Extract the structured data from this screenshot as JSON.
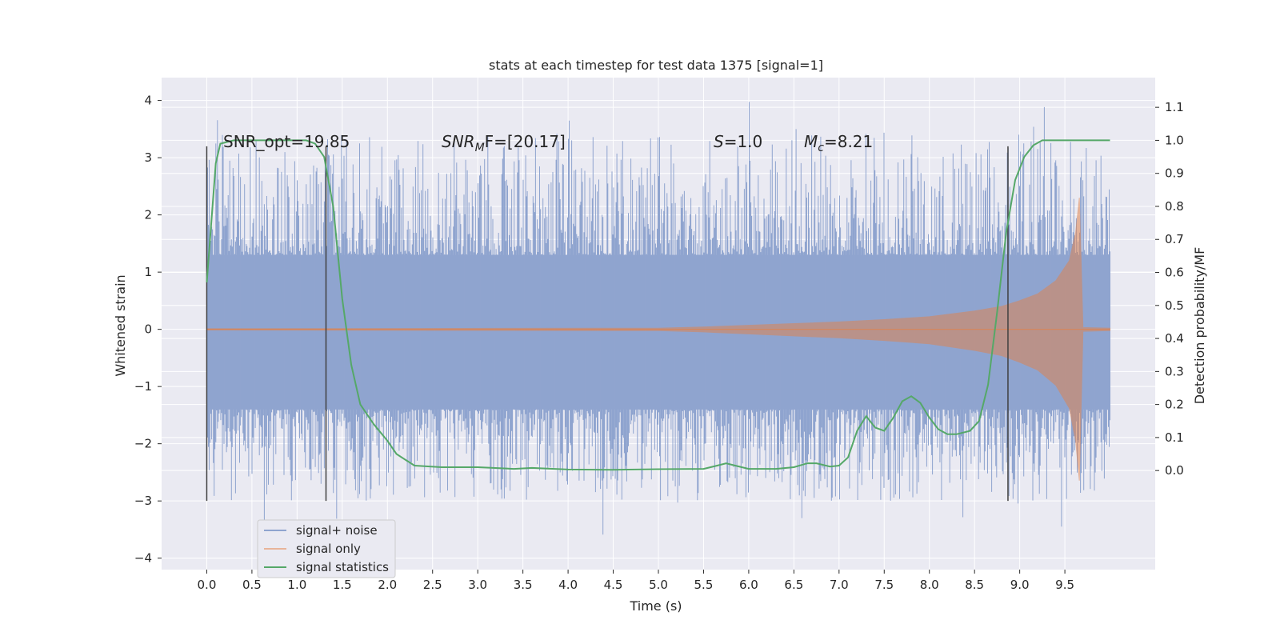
{
  "chart_data": {
    "type": "line",
    "title": "stats at each timestep for test data 1375 [signal=1]",
    "xlabel": "Time (s)",
    "ylabel": "Whitened strain",
    "ylabel_right": "Detection probability/MF",
    "xlim": [
      -0.5,
      10.5
    ],
    "ylim": [
      -4.2,
      4.4
    ],
    "ylim_right": [
      -0.3,
      1.19
    ],
    "x_ticks": [
      "0.0",
      "0.5",
      "1.0",
      "1.5",
      "2.0",
      "2.5",
      "3.0",
      "3.5",
      "4.0",
      "4.5",
      "5.0",
      "5.5",
      "6.0",
      "6.5",
      "7.0",
      "7.5",
      "8.0",
      "8.5",
      "9.0",
      "9.5"
    ],
    "y_ticks": [
      "−4",
      "−3",
      "−2",
      "−1",
      "0",
      "1",
      "2",
      "3",
      "4"
    ],
    "y_ticks_right": [
      "0.0",
      "0.1",
      "0.2",
      "0.3",
      "0.4",
      "0.5",
      "0.6",
      "0.7",
      "0.8",
      "0.9",
      "1.0",
      "1.1"
    ],
    "grid": true,
    "legend_position": "lower-left",
    "colors": {
      "background": "#eaeaf2",
      "noise": "#8fa4cf",
      "signal": "#dd8452",
      "stats": "#55a868",
      "vline": "#404040",
      "grid": "#ffffff"
    },
    "series": [
      {
        "name": "signal+ noise",
        "x": [
          0,
          10
        ],
        "band_upper": [
          1.3,
          1.3
        ],
        "band_lower": [
          -1.4,
          -1.4
        ],
        "spike_range": [
          -3.6,
          4.05
        ]
      },
      {
        "name": "signal only",
        "x": [
          0.0,
          5.0,
          5.5,
          6.0,
          6.5,
          7.0,
          7.5,
          8.0,
          8.5,
          8.8,
          9.0,
          9.2,
          9.4,
          9.55,
          9.62,
          9.66,
          9.7,
          10.0
        ],
        "amplitude": [
          0.01,
          0.02,
          0.04,
          0.07,
          0.1,
          0.13,
          0.17,
          0.22,
          0.32,
          0.4,
          0.5,
          0.62,
          0.85,
          1.2,
          1.7,
          2.3,
          0.03,
          0.02
        ]
      },
      {
        "name": "signal statistics",
        "x": [
          0.0,
          0.05,
          0.1,
          0.15,
          0.3,
          0.6,
          0.9,
          1.1,
          1.2,
          1.3,
          1.4,
          1.5,
          1.6,
          1.7,
          1.85,
          2.0,
          2.1,
          2.3,
          2.6,
          3.0,
          3.4,
          3.6,
          4.0,
          4.5,
          5.0,
          5.5,
          5.65,
          5.75,
          5.85,
          6.0,
          6.3,
          6.5,
          6.65,
          6.75,
          6.9,
          7.0,
          7.1,
          7.2,
          7.3,
          7.4,
          7.5,
          7.6,
          7.7,
          7.8,
          7.9,
          8.0,
          8.1,
          8.2,
          8.3,
          8.45,
          8.55,
          8.65,
          8.75,
          8.85,
          8.95,
          9.05,
          9.15,
          9.25,
          9.35,
          9.5,
          9.7,
          10.0
        ],
        "y": [
          0.57,
          0.75,
          0.93,
          0.99,
          1.0,
          1.0,
          1.0,
          1.0,
          0.99,
          0.95,
          0.8,
          0.52,
          0.32,
          0.2,
          0.14,
          0.09,
          0.05,
          0.015,
          0.01,
          0.01,
          0.005,
          0.008,
          0.003,
          0.002,
          0.004,
          0.005,
          0.015,
          0.022,
          0.015,
          0.005,
          0.005,
          0.01,
          0.022,
          0.022,
          0.012,
          0.015,
          0.04,
          0.12,
          0.165,
          0.13,
          0.12,
          0.16,
          0.21,
          0.225,
          0.205,
          0.16,
          0.125,
          0.11,
          0.11,
          0.12,
          0.15,
          0.26,
          0.48,
          0.72,
          0.88,
          0.95,
          0.985,
          1.0,
          1.0,
          1.0,
          1.0,
          1.0
        ]
      }
    ],
    "vlines": [
      {
        "x": 0.0,
        "ymin": -3.0,
        "ymax": 3.2
      },
      {
        "x": 1.32,
        "ymin": -3.0,
        "ymax": 3.2
      },
      {
        "x": 8.87,
        "ymin": -3.0,
        "ymax": 3.2
      }
    ],
    "annotations": {
      "snr_opt": {
        "text": "SNR_opt=19.85",
        "x": 0.2,
        "y": 3.2
      },
      "snr_mf": {
        "base": "SNR",
        "sub": "M",
        "rest": "F=[20.17]",
        "x": 2.6,
        "y": 3.2
      },
      "s": {
        "base": "S",
        "rest": "=1.0",
        "x": 5.6,
        "y": 3.2
      },
      "mc": {
        "base": "M",
        "sub": "c",
        "rest": "=8.21",
        "x": 6.6,
        "y": 3.2
      }
    }
  }
}
